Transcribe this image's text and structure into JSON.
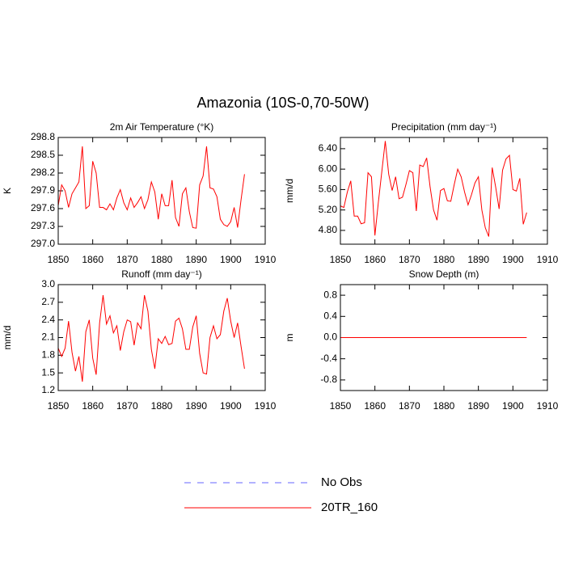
{
  "title": "Amazonia (10S-0,70-50W)",
  "legend": [
    {
      "name": "No Obs",
      "color": "#6666ff",
      "dashed": true
    },
    {
      "name": "20TR_160",
      "color": "#ff0000",
      "dashed": false
    }
  ],
  "chart_data": [
    {
      "type": "line",
      "title": "2m Air Temperature (°K)",
      "y_label": "K",
      "x": [
        1850,
        1851,
        1852,
        1853,
        1854,
        1855,
        1856,
        1857,
        1858,
        1859,
        1860,
        1861,
        1862,
        1863,
        1864,
        1865,
        1866,
        1867,
        1868,
        1869,
        1870,
        1871,
        1872,
        1873,
        1874,
        1875,
        1876,
        1877,
        1878,
        1879,
        1880,
        1881,
        1882,
        1883,
        1884,
        1885,
        1886,
        1887,
        1888,
        1889,
        1890,
        1891,
        1892,
        1893,
        1894,
        1895,
        1896,
        1897,
        1898,
        1899,
        1900,
        1901,
        1902,
        1903,
        1904
      ],
      "series": [
        {
          "color": "#ff0000",
          "values": [
            297.65,
            298.0,
            297.9,
            297.62,
            297.85,
            297.95,
            298.05,
            298.65,
            297.6,
            297.65,
            298.4,
            298.2,
            297.62,
            297.62,
            297.58,
            297.68,
            297.58,
            297.78,
            297.92,
            297.7,
            297.58,
            297.78,
            297.62,
            297.7,
            297.8,
            297.6,
            297.75,
            298.05,
            297.88,
            297.42,
            297.85,
            297.65,
            297.65,
            298.08,
            297.45,
            297.3,
            297.85,
            297.95,
            297.55,
            297.28,
            297.27,
            298.0,
            298.15,
            298.65,
            297.95,
            297.93,
            297.8,
            297.42,
            297.33,
            297.3,
            297.38,
            297.62,
            297.28,
            297.75,
            298.18
          ]
        }
      ],
      "xlim": [
        1850,
        1910
      ],
      "xticks": [
        1850,
        1860,
        1870,
        1880,
        1890,
        1900,
        1910
      ],
      "ylim": [
        297.0,
        298.8
      ],
      "yticks": [
        {
          "value": 297,
          "label": "297.0"
        },
        297.3,
        297.6,
        297.9,
        298.2,
        298.5,
        298.8
      ]
    },
    {
      "type": "line",
      "title": "Precipitation (mm day⁻¹)",
      "y_label": "mm/d",
      "x": [
        1850,
        1851,
        1852,
        1853,
        1854,
        1855,
        1856,
        1857,
        1858,
        1859,
        1860,
        1861,
        1862,
        1863,
        1864,
        1865,
        1866,
        1867,
        1868,
        1869,
        1870,
        1871,
        1872,
        1873,
        1874,
        1875,
        1876,
        1877,
        1878,
        1879,
        1880,
        1881,
        1882,
        1883,
        1884,
        1885,
        1886,
        1887,
        1888,
        1889,
        1890,
        1891,
        1892,
        1893,
        1894,
        1895,
        1896,
        1897,
        1898,
        1899,
        1900,
        1901,
        1902,
        1903,
        1904
      ],
      "series": [
        {
          "color": "#ff0000",
          "values": [
            5.28,
            5.25,
            5.55,
            5.77,
            5.08,
            5.08,
            4.93,
            4.95,
            5.93,
            5.85,
            4.7,
            5.35,
            5.95,
            6.55,
            5.9,
            5.58,
            5.85,
            5.42,
            5.45,
            5.7,
            5.97,
            5.93,
            5.18,
            6.08,
            6.05,
            6.22,
            5.65,
            5.2,
            5.0,
            5.58,
            5.62,
            5.38,
            5.37,
            5.7,
            6.0,
            5.85,
            5.55,
            5.3,
            5.5,
            5.73,
            5.85,
            5.2,
            4.85,
            4.68,
            6.03,
            5.65,
            5.22,
            5.98,
            6.2,
            6.27,
            5.6,
            5.57,
            5.82,
            4.92,
            5.15
          ]
        }
      ],
      "xlim": [
        1850,
        1910
      ],
      "xticks": [
        1850,
        1860,
        1870,
        1880,
        1890,
        1900,
        1910
      ],
      "ylim": [
        4.53,
        6.62
      ],
      "yticks": [
        {
          "value": 4.8,
          "label": "4.80"
        },
        {
          "value": 5.2,
          "label": "5.20"
        },
        {
          "value": 5.6,
          "label": "5.60"
        },
        {
          "value": 6.0,
          "label": "6.00"
        },
        {
          "value": 6.4,
          "label": "6.40"
        }
      ]
    },
    {
      "type": "line",
      "title": "Runoff (mm day⁻¹)",
      "y_label": "mm/d",
      "x": [
        1850,
        1851,
        1852,
        1853,
        1854,
        1855,
        1856,
        1857,
        1858,
        1859,
        1860,
        1861,
        1862,
        1863,
        1864,
        1865,
        1866,
        1867,
        1868,
        1869,
        1870,
        1871,
        1872,
        1873,
        1874,
        1875,
        1876,
        1877,
        1878,
        1879,
        1880,
        1881,
        1882,
        1883,
        1884,
        1885,
        1886,
        1887,
        1888,
        1889,
        1890,
        1891,
        1892,
        1893,
        1894,
        1895,
        1896,
        1897,
        1898,
        1899,
        1900,
        1901,
        1902,
        1903,
        1904
      ],
      "series": [
        {
          "color": "#ff0000",
          "values": [
            1.92,
            1.78,
            1.92,
            2.38,
            1.85,
            1.53,
            1.78,
            1.35,
            2.2,
            2.4,
            1.75,
            1.47,
            2.35,
            2.82,
            2.33,
            2.47,
            2.18,
            2.3,
            1.88,
            2.2,
            2.4,
            2.37,
            1.97,
            2.35,
            2.25,
            2.82,
            2.55,
            1.9,
            1.57,
            2.08,
            2.0,
            2.12,
            1.98,
            2.0,
            2.38,
            2.43,
            2.25,
            1.9,
            1.9,
            2.28,
            2.47,
            1.83,
            1.5,
            1.48,
            2.1,
            2.3,
            2.08,
            2.15,
            2.55,
            2.77,
            2.38,
            2.1,
            2.35,
            1.95,
            1.57
          ]
        }
      ],
      "xlim": [
        1850,
        1910
      ],
      "xticks": [
        1850,
        1860,
        1870,
        1880,
        1890,
        1900,
        1910
      ],
      "ylim": [
        1.2,
        3.0
      ],
      "yticks": [
        1.2,
        1.5,
        1.8,
        2.1,
        2.4,
        2.7,
        {
          "value": 3,
          "label": "3.0"
        }
      ]
    },
    {
      "type": "line",
      "title": "Snow Depth (m)",
      "y_label": "m",
      "x": [
        1850,
        1851,
        1852,
        1853,
        1854,
        1855,
        1856,
        1857,
        1858,
        1859,
        1860,
        1861,
        1862,
        1863,
        1864,
        1865,
        1866,
        1867,
        1868,
        1869,
        1870,
        1871,
        1872,
        1873,
        1874,
        1875,
        1876,
        1877,
        1878,
        1879,
        1880,
        1881,
        1882,
        1883,
        1884,
        1885,
        1886,
        1887,
        1888,
        1889,
        1890,
        1891,
        1892,
        1893,
        1894,
        1895,
        1896,
        1897,
        1898,
        1899,
        1900,
        1901,
        1902,
        1903,
        1904
      ],
      "series": [
        {
          "color": "#ff0000",
          "values": [
            0,
            0,
            0,
            0,
            0,
            0,
            0,
            0,
            0,
            0,
            0,
            0,
            0,
            0,
            0,
            0,
            0,
            0,
            0,
            0,
            0,
            0,
            0,
            0,
            0,
            0,
            0,
            0,
            0,
            0,
            0,
            0,
            0,
            0,
            0,
            0,
            0,
            0,
            0,
            0,
            0,
            0,
            0,
            0,
            0,
            0,
            0,
            0,
            0,
            0,
            0,
            0,
            0,
            0,
            0
          ]
        }
      ],
      "xlim": [
        1850,
        1910
      ],
      "xticks": [
        1850,
        1860,
        1870,
        1880,
        1890,
        1900,
        1910
      ],
      "ylim": [
        -1.0,
        1.0
      ],
      "yticks": [
        -0.8,
        -0.4,
        {
          "value": 0,
          "label": "0.0"
        },
        0.4,
        0.8
      ]
    }
  ]
}
